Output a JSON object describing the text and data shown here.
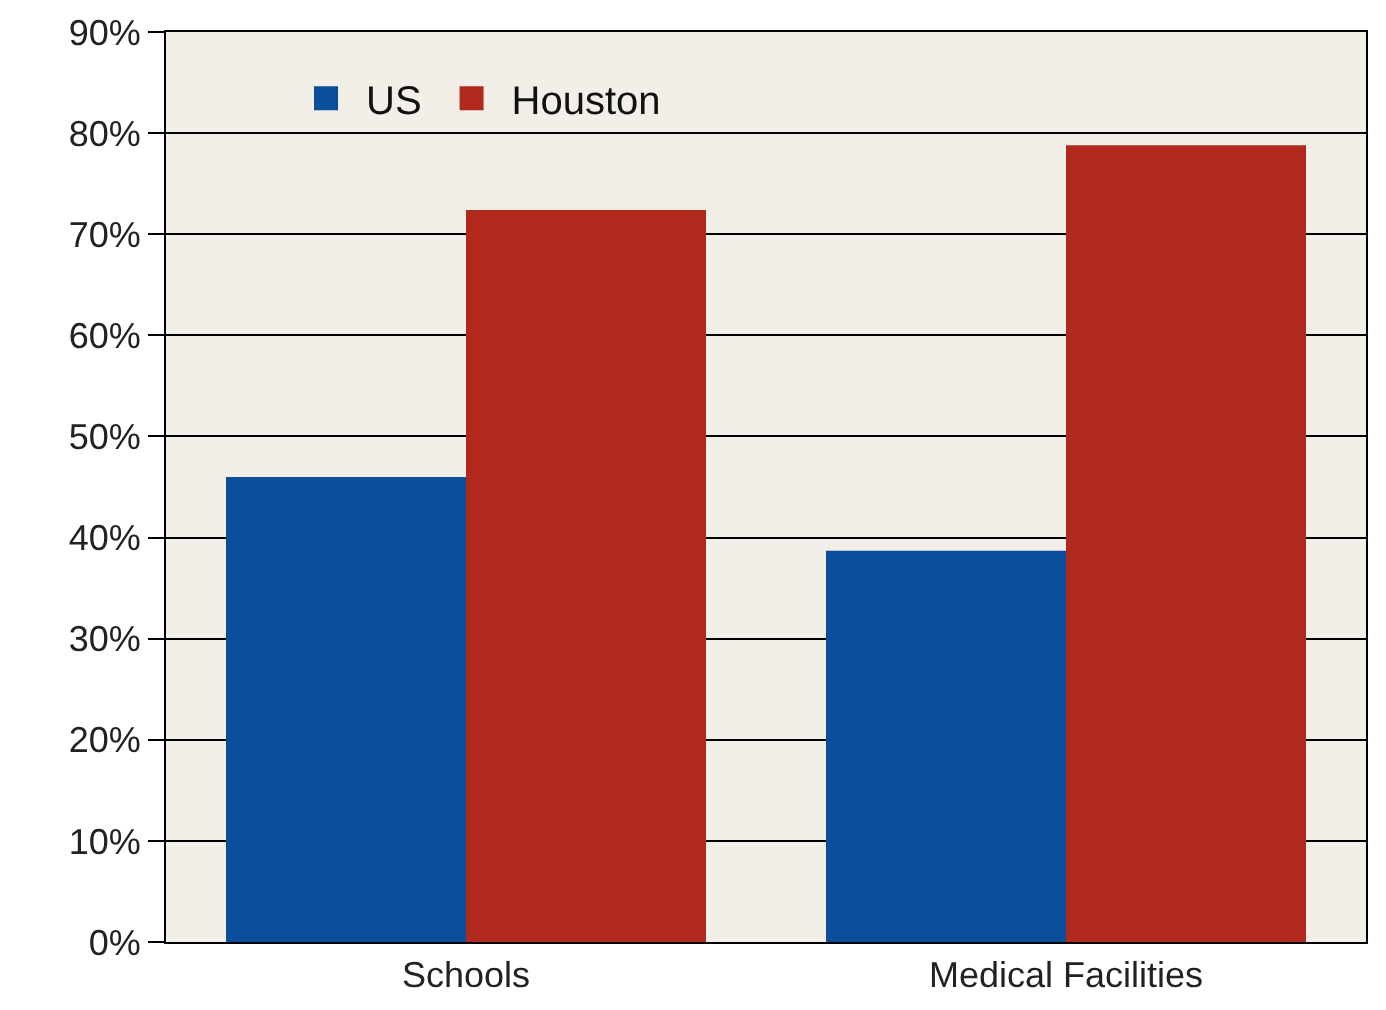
{
  "chart_data": {
    "type": "bar",
    "categories": [
      "Schools",
      "Medical Facilities"
    ],
    "series": [
      {
        "name": "US",
        "color": "#0a4f9c",
        "values": [
          46,
          38.7
        ]
      },
      {
        "name": "Houston",
        "color": "#b0291c",
        "values": [
          72.4,
          78.8
        ]
      }
    ],
    "ylim": [
      0,
      90
    ],
    "yticks": [
      {
        "value": 0,
        "label": "0%"
      },
      {
        "value": 10,
        "label": "10%"
      },
      {
        "value": 20,
        "label": "20%"
      },
      {
        "value": 30,
        "label": "30%"
      },
      {
        "value": 40,
        "label": "40%"
      },
      {
        "value": 50,
        "label": "50%"
      },
      {
        "value": 60,
        "label": "60%"
      },
      {
        "value": 70,
        "label": "70%"
      },
      {
        "value": 80,
        "label": "80%"
      },
      {
        "value": 90,
        "label": "90%"
      }
    ],
    "grid": "y",
    "legend": "top left"
  }
}
